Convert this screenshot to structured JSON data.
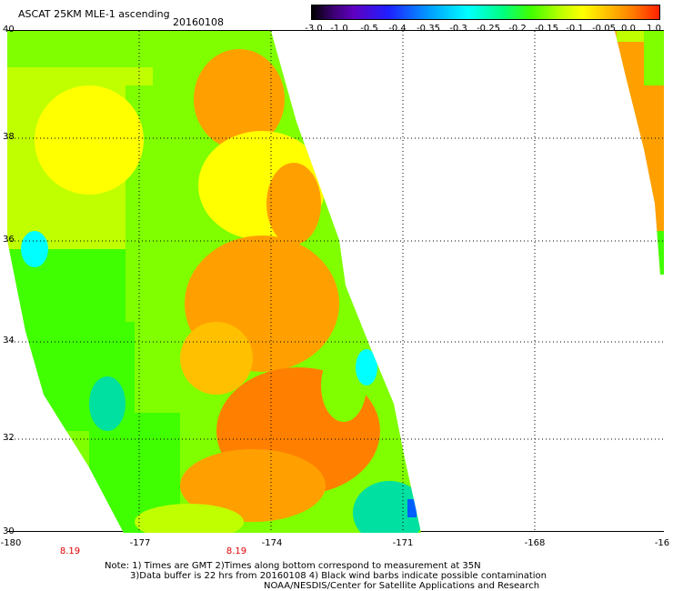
{
  "header": {
    "title": "ASCAT 25KM MLE-1 ascending",
    "date": "20160108"
  },
  "colorbar": {
    "labels": [
      "-3.0",
      "-1.0",
      "-0.5",
      "-0.4",
      "-0.35",
      "-0.3",
      "-0.25",
      "-0.2",
      "-0.15",
      "-0.1",
      "-0.05",
      "0.0",
      "1.0"
    ]
  },
  "axes": {
    "y_labels": [
      "40",
      "38",
      "36",
      "34",
      "32",
      "30"
    ],
    "x_labels": [
      "-180",
      "-177",
      "-174",
      "-171",
      "-168",
      "-16"
    ],
    "time_labels": [
      "8.19",
      "8.19"
    ]
  },
  "notes": {
    "line1": "Note: 1) Times are GMT 2)Times along bottom correspond to measurement at 35N",
    "line2": "3)Data buffer is 22 hrs from 20160108 4) Black wind barbs indicate possible contamination",
    "line3": "NOAA/NESDIS/Center for Satellite Applications and Research"
  },
  "colors": {
    "green": "#40ff00",
    "light_green": "#80ff00",
    "yellow_green": "#c0ff00",
    "yellow": "#ffff00",
    "orange": "#ffa000",
    "deep_orange": "#ff8000",
    "cyan": "#00ffff",
    "aqua": "#00e0a0",
    "blue": "#0060ff"
  }
}
